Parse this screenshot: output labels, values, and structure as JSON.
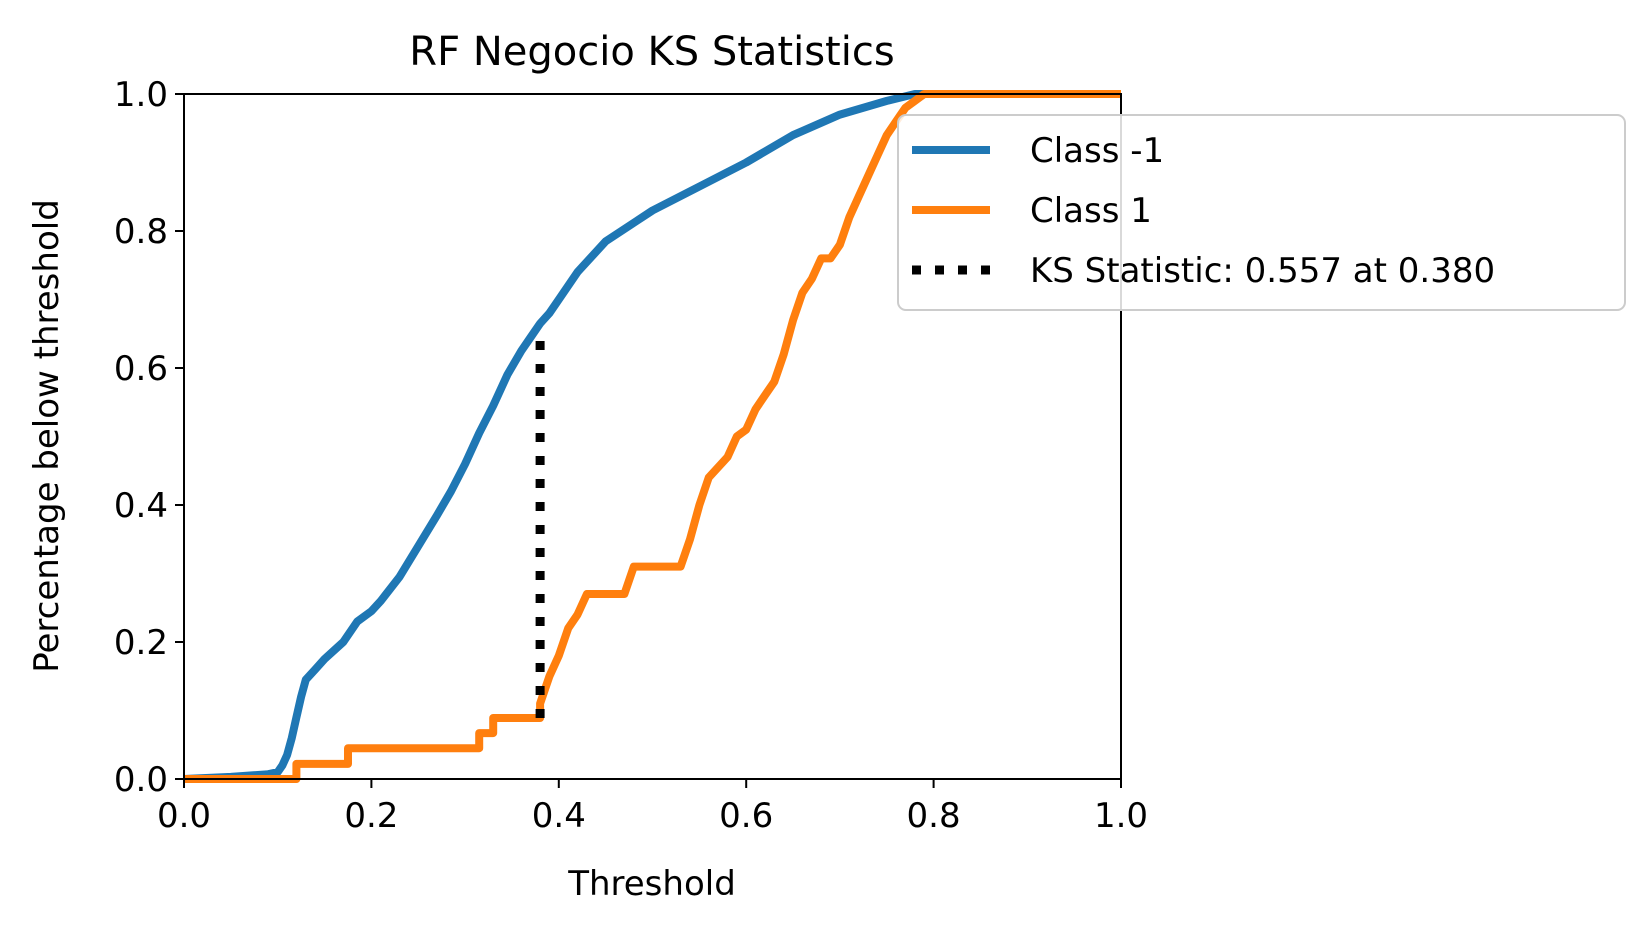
{
  "chart_data": {
    "type": "line",
    "title": "RF Negocio KS Statistics",
    "xlabel": "Threshold",
    "ylabel": "Percentage below threshold",
    "xlim": [
      0.0,
      1.0
    ],
    "ylim": [
      0.0,
      1.0
    ],
    "x_ticks": [
      "0.0",
      "0.2",
      "0.4",
      "0.6",
      "0.8",
      "1.0"
    ],
    "y_ticks": [
      "0.0",
      "0.2",
      "0.4",
      "0.6",
      "0.8",
      "1.0"
    ],
    "grid": false,
    "legend_position": "upper right, extending outside the axes",
    "series": [
      {
        "name": "Class -1",
        "color": "#1f77b4",
        "style": "solid",
        "x": [
          0.0,
          0.05,
          0.09,
          0.1,
          0.105,
          0.11,
          0.115,
          0.12,
          0.125,
          0.13,
          0.14,
          0.15,
          0.17,
          0.185,
          0.2,
          0.21,
          0.23,
          0.25,
          0.27,
          0.285,
          0.3,
          0.315,
          0.33,
          0.345,
          0.36,
          0.37,
          0.38,
          0.39,
          0.4,
          0.42,
          0.45,
          0.5,
          0.55,
          0.6,
          0.65,
          0.7,
          0.75,
          0.78,
          0.8,
          1.0
        ],
        "y": [
          0.0,
          0.003,
          0.007,
          0.01,
          0.02,
          0.035,
          0.06,
          0.09,
          0.12,
          0.145,
          0.16,
          0.175,
          0.2,
          0.23,
          0.245,
          0.26,
          0.295,
          0.34,
          0.385,
          0.42,
          0.46,
          0.505,
          0.545,
          0.59,
          0.625,
          0.645,
          0.665,
          0.68,
          0.7,
          0.74,
          0.785,
          0.83,
          0.865,
          0.9,
          0.94,
          0.97,
          0.99,
          1.0,
          1.0,
          1.0
        ]
      },
      {
        "name": "Class 1",
        "color": "#ff7f0e",
        "style": "solid",
        "x": [
          0.0,
          0.12,
          0.12,
          0.175,
          0.175,
          0.315,
          0.315,
          0.33,
          0.33,
          0.38,
          0.38,
          0.39,
          0.4,
          0.41,
          0.42,
          0.43,
          0.44,
          0.47,
          0.48,
          0.53,
          0.54,
          0.55,
          0.56,
          0.58,
          0.59,
          0.6,
          0.61,
          0.62,
          0.63,
          0.64,
          0.65,
          0.66,
          0.67,
          0.68,
          0.69,
          0.7,
          0.71,
          0.72,
          0.73,
          0.74,
          0.75,
          0.76,
          0.77,
          0.78,
          0.79,
          1.0
        ],
        "y": [
          0.0,
          0.0,
          0.022,
          0.022,
          0.045,
          0.045,
          0.067,
          0.067,
          0.089,
          0.089,
          0.11,
          0.15,
          0.18,
          0.22,
          0.24,
          0.27,
          0.27,
          0.27,
          0.31,
          0.31,
          0.35,
          0.4,
          0.44,
          0.47,
          0.5,
          0.51,
          0.54,
          0.56,
          0.58,
          0.62,
          0.67,
          0.71,
          0.73,
          0.76,
          0.76,
          0.78,
          0.82,
          0.85,
          0.88,
          0.91,
          0.94,
          0.96,
          0.98,
          0.99,
          1.0,
          1.0
        ]
      },
      {
        "name": "KS Statistic: 0.557 at 0.380",
        "color": "#000000",
        "style": "dotted",
        "x": [
          0.38,
          0.38
        ],
        "y": [
          0.089,
          0.646
        ]
      }
    ]
  }
}
